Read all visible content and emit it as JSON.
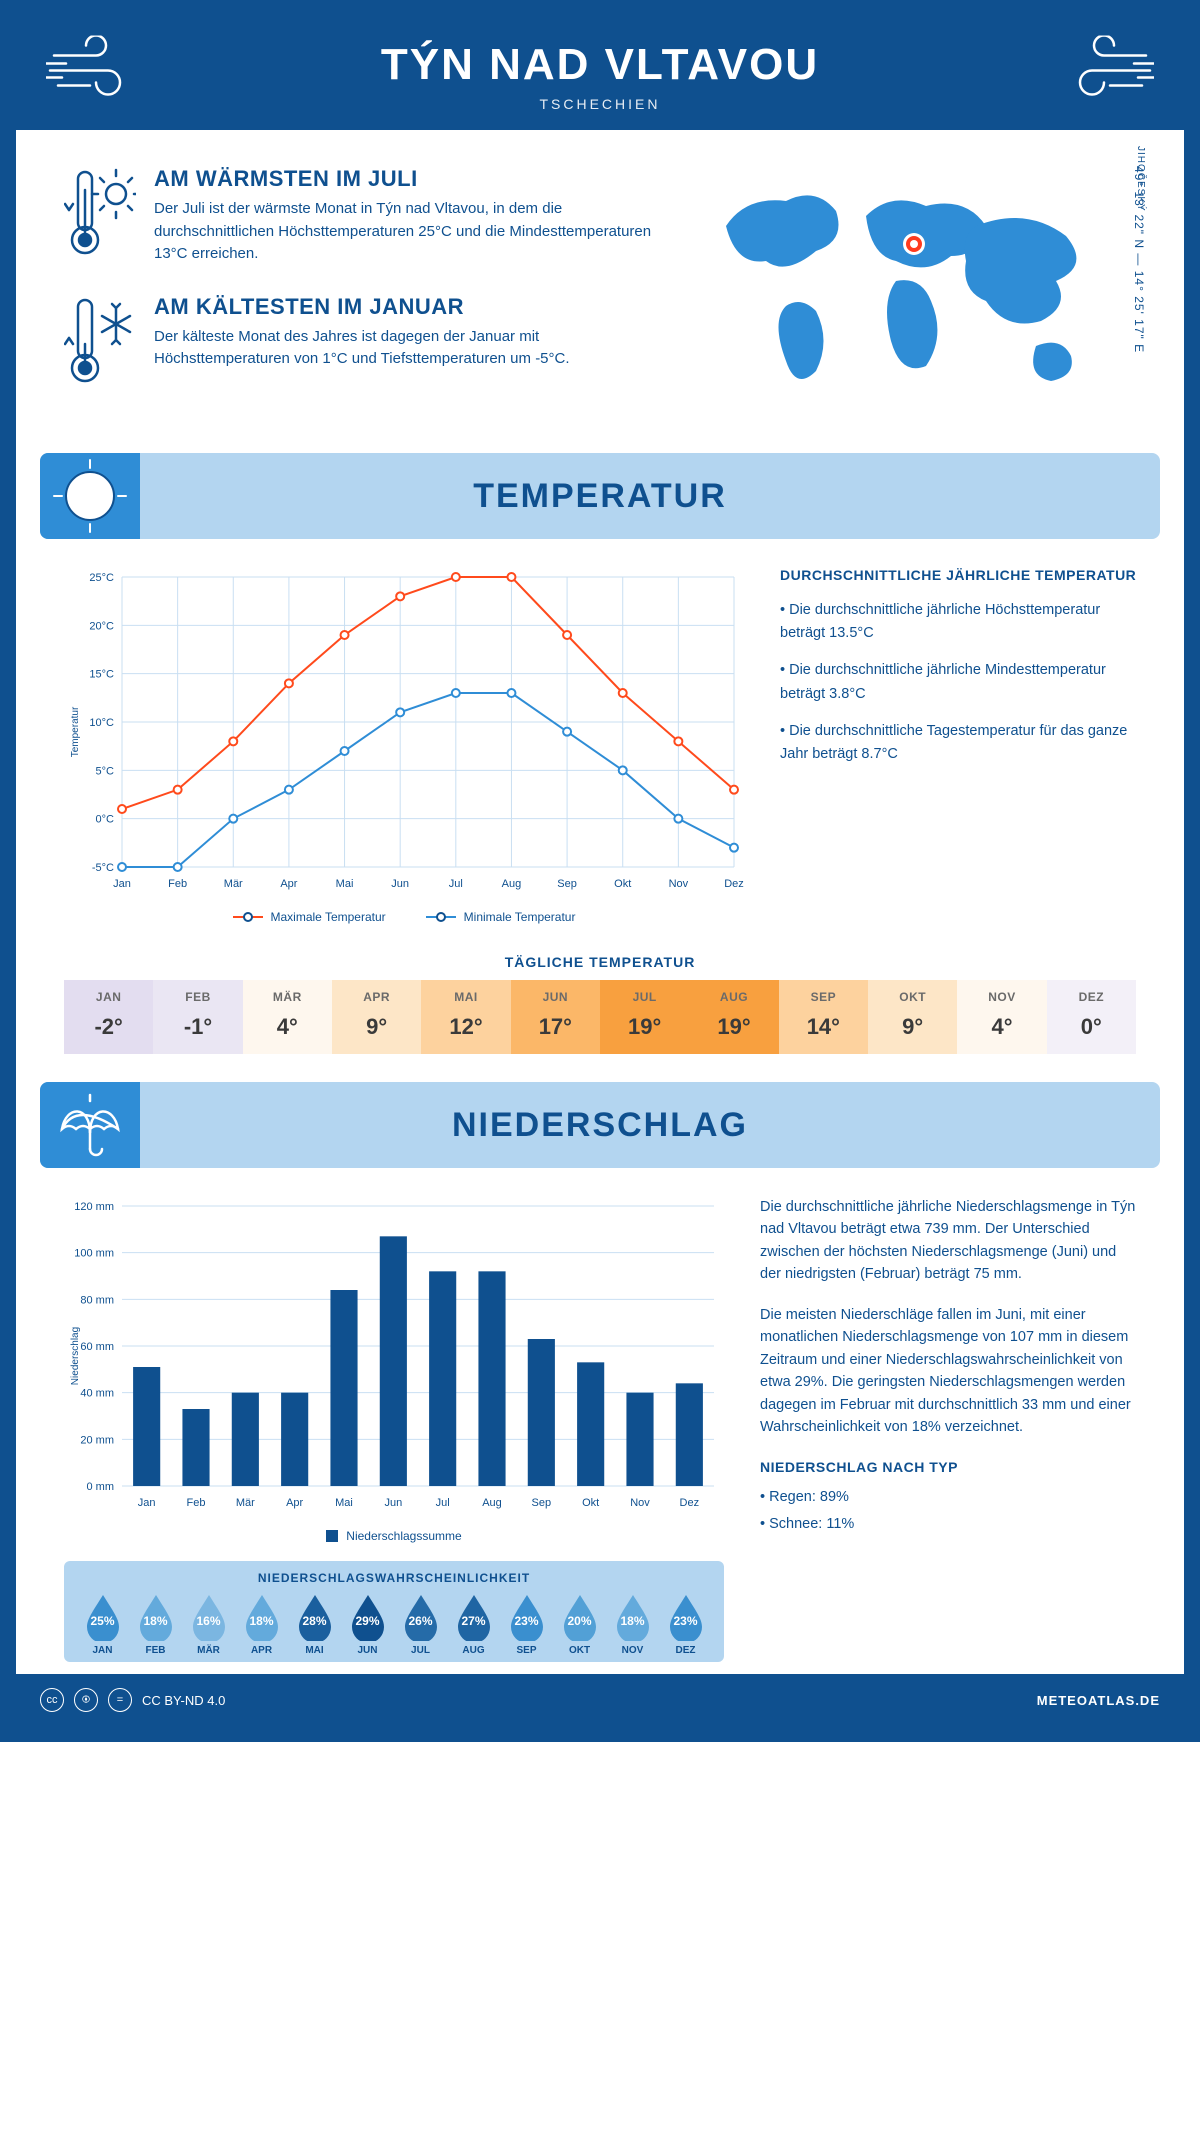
{
  "header": {
    "title": "TÝN NAD VLTAVOU",
    "country": "TSCHECHIEN"
  },
  "location": {
    "region": "JIHOČESKÝ",
    "coords": "49° 13' 22\" N — 14° 25' 17\" E"
  },
  "facts": {
    "warm": {
      "title": "AM WÄRMSTEN IM JULI",
      "text": "Der Juli ist der wärmste Monat in Týn nad Vltavou, in dem die durchschnittlichen Höchsttemperaturen 25°C und die Mindesttemperaturen 13°C erreichen."
    },
    "cold": {
      "title": "AM KÄLTESTEN IM JANUAR",
      "text": "Der kälteste Monat des Jahres ist dagegen der Januar mit Höchsttemperaturen von 1°C und Tiefsttemperaturen um -5°C."
    }
  },
  "sections": {
    "temperature": "TEMPERATUR",
    "precipitation": "NIEDERSCHLAG"
  },
  "temp_chart": {
    "type": "line",
    "months": [
      "Jan",
      "Feb",
      "Mär",
      "Apr",
      "Mai",
      "Jun",
      "Jul",
      "Aug",
      "Sep",
      "Okt",
      "Nov",
      "Dez"
    ],
    "max_series": {
      "label": "Maximale Temperatur",
      "color": "#ff4a1c",
      "values": [
        1,
        3,
        8,
        14,
        19,
        23,
        25,
        25,
        19,
        13,
        8,
        3
      ]
    },
    "min_series": {
      "label": "Minimale Temperatur",
      "color": "#2f8dd6",
      "values": [
        -5,
        -5,
        0,
        3,
        7,
        11,
        13,
        13,
        9,
        5,
        0,
        -3
      ]
    },
    "y_axis_label": "Temperatur",
    "ylim": [
      -5,
      25
    ],
    "ytick_step": 5,
    "y_unit": "°C",
    "grid_color": "#c9dff2",
    "background": "#ffffff",
    "marker": "circle-open",
    "line_width": 2
  },
  "temp_facts": {
    "heading": "DURCHSCHNITTLICHE JÄHRLICHE TEMPERATUR",
    "bullets": [
      "• Die durchschnittliche jährliche Höchsttemperatur beträgt 13.5°C",
      "• Die durchschnittliche jährliche Mindesttemperatur beträgt 3.8°C",
      "• Die durchschnittliche Tagestemperatur für das ganze Jahr beträgt 8.7°C"
    ]
  },
  "daily_temp": {
    "title": "TÄGLICHE TEMPERATUR",
    "months": [
      "JAN",
      "FEB",
      "MÄR",
      "APR",
      "MAI",
      "JUN",
      "JUL",
      "AUG",
      "SEP",
      "OKT",
      "NOV",
      "DEZ"
    ],
    "values": [
      "-2°",
      "-1°",
      "4°",
      "9°",
      "12°",
      "17°",
      "19°",
      "19°",
      "14°",
      "9°",
      "4°",
      "0°"
    ],
    "cell_colors": [
      "#e3ddf0",
      "#eae6f3",
      "#fef7ee",
      "#fde6c7",
      "#fdd29e",
      "#fbb768",
      "#f8a03f",
      "#f8a03f",
      "#fdd29e",
      "#fde6c7",
      "#fef7ee",
      "#f3f0f8"
    ]
  },
  "precip_chart": {
    "type": "bar",
    "months": [
      "Jan",
      "Feb",
      "Mär",
      "Apr",
      "Mai",
      "Jun",
      "Jul",
      "Aug",
      "Sep",
      "Okt",
      "Nov",
      "Dez"
    ],
    "values": [
      51,
      33,
      40,
      40,
      84,
      107,
      92,
      92,
      63,
      53,
      40,
      44
    ],
    "bar_color": "#0f508f",
    "y_axis_label": "Niederschlag",
    "ylim": [
      0,
      120
    ],
    "ytick_step": 20,
    "y_unit": " mm",
    "grid_color": "#c9dff2",
    "legend": "Niederschlagssumme",
    "bar_width": 0.55
  },
  "precip_text": {
    "p1": "Die durchschnittliche jährliche Niederschlagsmenge in Týn nad Vltavou beträgt etwa 739 mm. Der Unterschied zwischen der höchsten Niederschlagsmenge (Juni) und der niedrigsten (Februar) beträgt 75 mm.",
    "p2": "Die meisten Niederschläge fallen im Juni, mit einer monatlichen Niederschlagsmenge von 107 mm in diesem Zeitraum und einer Niederschlagswahrscheinlichkeit von etwa 29%. Die geringsten Niederschlagsmengen werden dagegen im Februar mit durchschnittlich 33 mm und einer Wahrscheinlichkeit von 18% verzeichnet.",
    "by_type_heading": "NIEDERSCHLAG NACH TYP",
    "by_type": [
      "• Regen: 89%",
      "• Schnee: 11%"
    ]
  },
  "precip_prob": {
    "title": "NIEDERSCHLAGSWAHRSCHEINLICHKEIT",
    "months": [
      "JAN",
      "FEB",
      "MÄR",
      "APR",
      "MAI",
      "JUN",
      "JUL",
      "AUG",
      "SEP",
      "OKT",
      "NOV",
      "DEZ"
    ],
    "values": [
      "25%",
      "18%",
      "16%",
      "18%",
      "28%",
      "29%",
      "26%",
      "27%",
      "23%",
      "20%",
      "18%",
      "23%"
    ],
    "drop_colors": [
      "#3a8fcf",
      "#63aadc",
      "#7bb6e1",
      "#63aadc",
      "#1a5f9e",
      "#0f508f",
      "#256ba8",
      "#1f65a3",
      "#3a8fcf",
      "#52a0d6",
      "#63aadc",
      "#3a8fcf"
    ]
  },
  "footer": {
    "license": "CC BY-ND 4.0",
    "site": "METEOATLAS.DE"
  },
  "colors": {
    "brand": "#0f508f",
    "banner": "#b3d5f0",
    "accent": "#2f8dd6",
    "marker": "#ff3b1f"
  }
}
